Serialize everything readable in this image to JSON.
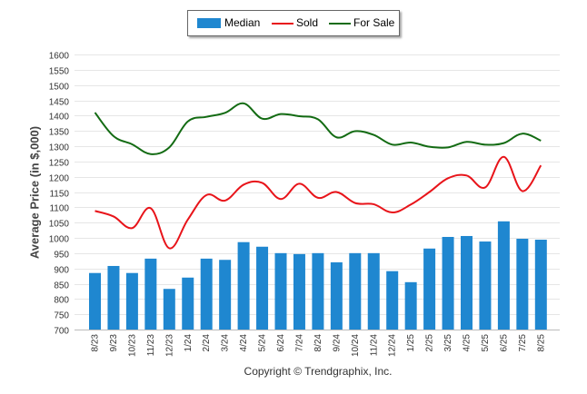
{
  "legend": {
    "median_label": "Median",
    "sold_label": "Sold",
    "forsale_label": "For Sale"
  },
  "footer": {
    "copyright": "Copyright © Trendgraphix, Inc."
  },
  "colors": {
    "median": "#1f87d0",
    "sold": "#e8141a",
    "forsale": "#136b13"
  },
  "chart_data": {
    "type": "bar",
    "ylabel": "Average Price (in $,000)",
    "ylim": [
      700,
      1600
    ],
    "yticks": [
      700,
      750,
      800,
      850,
      900,
      950,
      1000,
      1050,
      1100,
      1150,
      1200,
      1250,
      1300,
      1350,
      1400,
      1450,
      1500,
      1550,
      1600
    ],
    "grid": true,
    "legend_position": "top-center",
    "categories": [
      "8/23",
      "9/23",
      "10/23",
      "11/23",
      "12/23",
      "1/24",
      "2/24",
      "3/24",
      "4/24",
      "5/24",
      "6/24",
      "7/24",
      "8/24",
      "9/24",
      "10/24",
      "11/24",
      "12/24",
      "1/25",
      "2/25",
      "3/25",
      "4/25",
      "5/25",
      "6/25",
      "7/25",
      "8/25"
    ],
    "series": [
      {
        "name": "Median",
        "type": "bar",
        "values": [
          885,
          908,
          885,
          932,
          833,
          870,
          932,
          928,
          986,
          971,
          950,
          947,
          950,
          920,
          950,
          950,
          891,
          855,
          965,
          1003,
          1006,
          988,
          1054,
          997,
          994
        ]
      },
      {
        "name": "Sold",
        "type": "line",
        "values": [
          1088,
          1070,
          1032,
          1097,
          966,
          1060,
          1140,
          1122,
          1174,
          1180,
          1127,
          1177,
          1131,
          1150,
          1114,
          1110,
          1083,
          1109,
          1150,
          1195,
          1204,
          1165,
          1265,
          1153,
          1237
        ]
      },
      {
        "name": "For Sale",
        "type": "line",
        "values": [
          1410,
          1333,
          1306,
          1274,
          1296,
          1381,
          1396,
          1409,
          1440,
          1390,
          1405,
          1398,
          1388,
          1329,
          1349,
          1337,
          1305,
          1312,
          1298,
          1296,
          1314,
          1305,
          1310,
          1341,
          1318
        ]
      }
    ]
  }
}
